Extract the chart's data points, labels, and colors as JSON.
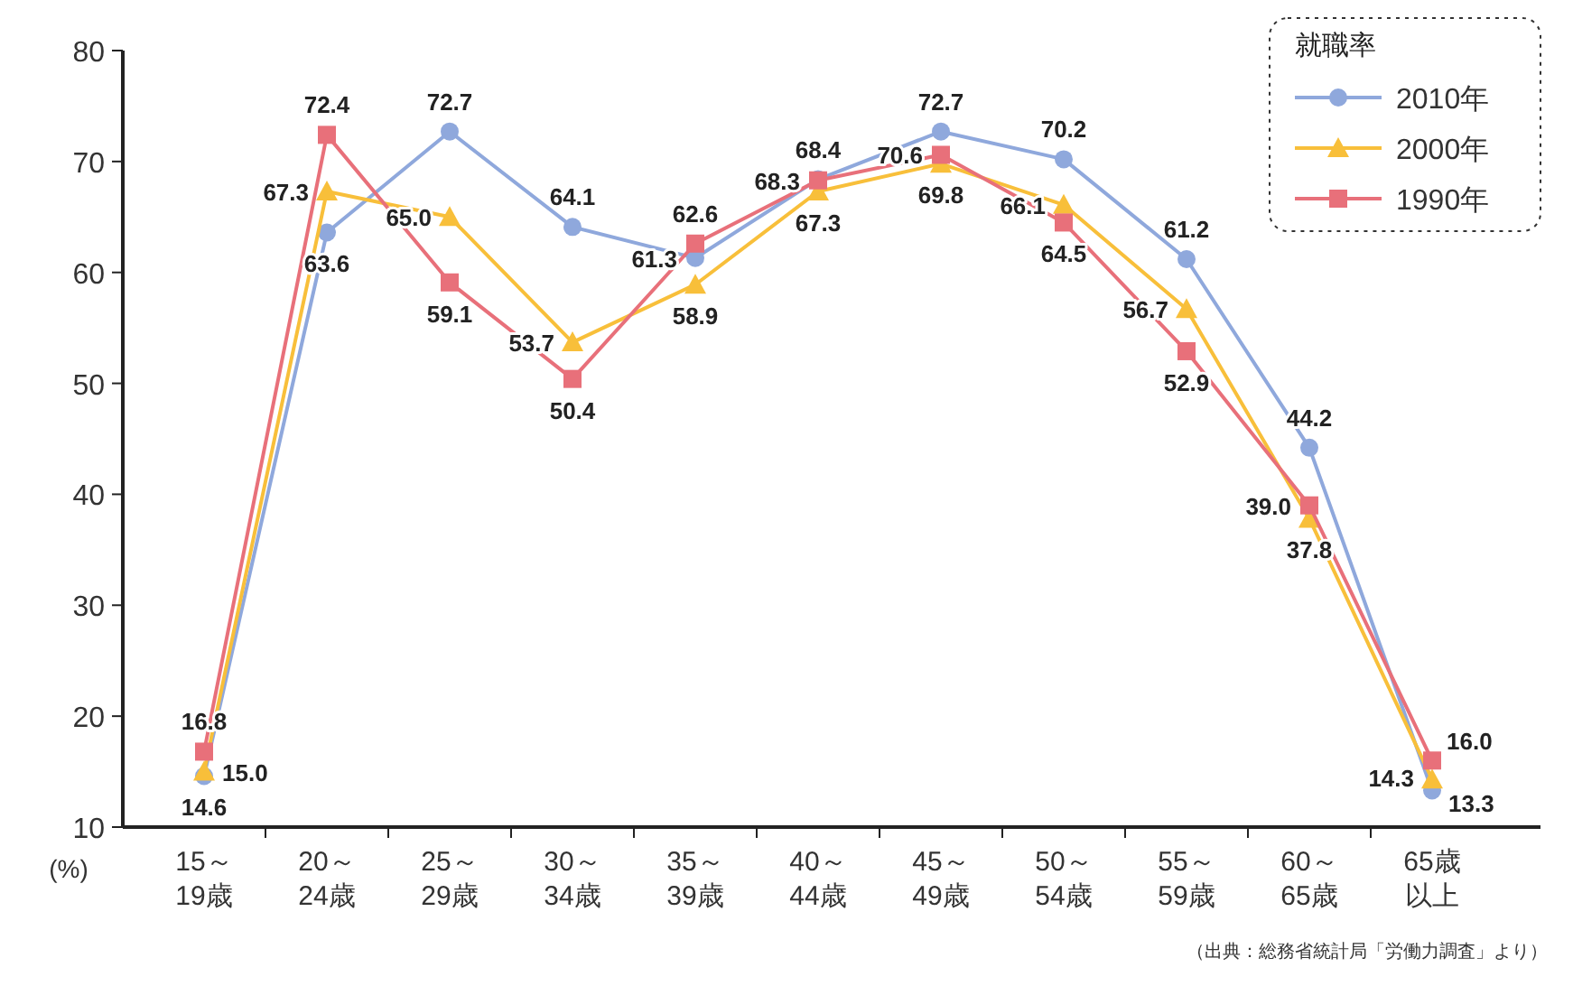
{
  "chart_data": {
    "type": "line",
    "categories": [
      "15～19歳",
      "20～24歳",
      "25～29歳",
      "30～34歳",
      "35～39歳",
      "40～44歳",
      "45～49歳",
      "50～54歳",
      "55～59歳",
      "60～65歳",
      "65歳以上"
    ],
    "series": [
      {
        "name": "2010年",
        "color": "#8fa8dc",
        "marker": "circle",
        "values": [
          14.6,
          63.6,
          72.7,
          64.1,
          61.3,
          68.4,
          72.7,
          70.2,
          61.2,
          44.2,
          13.3
        ],
        "value_labels": [
          "14.6",
          "63.6",
          "72.7",
          "64.1",
          "61.3",
          "68.4",
          "72.7",
          "70.2",
          "61.2",
          "44.2",
          "13.3"
        ]
      },
      {
        "name": "2000年",
        "color": "#f8bf3a",
        "marker": "triangle",
        "values": [
          15.0,
          67.3,
          65.0,
          53.7,
          58.9,
          67.3,
          69.8,
          66.1,
          56.7,
          37.8,
          14.3
        ],
        "value_labels": [
          "15.0",
          "67.3",
          "65.0",
          "53.7",
          "58.9",
          "67.3",
          "69.8",
          "66.1",
          "56.7",
          "37.8",
          "14.3"
        ]
      },
      {
        "name": "1990年",
        "color": "#e8707a",
        "marker": "square",
        "values": [
          16.8,
          72.4,
          59.1,
          50.4,
          62.6,
          68.3,
          70.6,
          64.5,
          52.9,
          39.0,
          16.0
        ],
        "value_labels": [
          "16.8",
          "72.4",
          "59.1",
          "50.4",
          "62.6",
          "68.3",
          "70.6",
          "64.5",
          "52.9",
          "39.0",
          "16.0"
        ]
      }
    ],
    "ylim": [
      10,
      80
    ],
    "yticks": [
      10,
      20,
      30,
      40,
      50,
      60,
      70,
      80
    ],
    "ylabel": "(%)",
    "legend_title": "就職率",
    "legend": "top right",
    "grid": false,
    "annotations": [
      "（出典：総務省統計局「労働力調査」より）"
    ]
  }
}
